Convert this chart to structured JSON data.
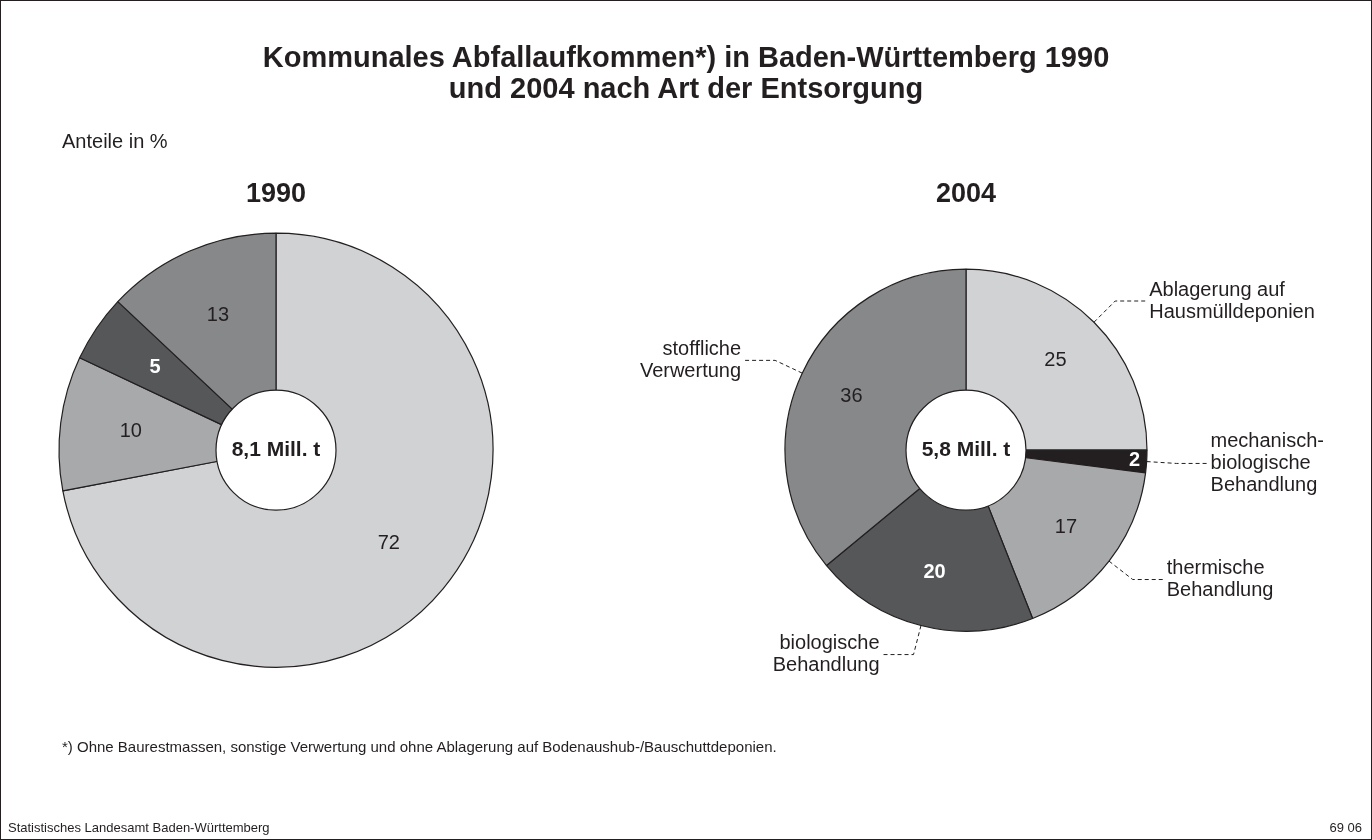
{
  "chart_data": [
    {
      "type": "donut",
      "title": "1990",
      "categories": [
        null,
        null,
        null,
        null
      ],
      "values": [
        72,
        10,
        5,
        13
      ],
      "colors": [
        "#d1d2d4",
        "#a8a9ab",
        "#555759",
        "#87888a"
      ],
      "data_labels": true,
      "legend": false,
      "annotations": [
        "Kommunales Abfallaufkommen*) in Baden-Württemberg 1990 und 2004 nach Art der Entsorgung",
        "Anteile in %",
        "8,1 Mill. t",
        "*) Ohne Baurestmassen, sonstige Verwertung und ohne Ablagerung auf Bodenaushub-/Bauschuttdeponien.",
        "Statistisches Landesamt Baden-Württemberg",
        "69 06"
      ]
    },
    {
      "type": "donut",
      "title": "2004",
      "categories": [
        "Ablagerung auf Hausmülldeponien",
        "mechanisch-biologische Behandlung",
        "thermische Behandlung",
        "biologische Behandlung",
        "stoffliche Verwertung"
      ],
      "values": [
        25,
        2,
        17,
        20,
        36
      ],
      "colors": [
        "#d1d2d4",
        "#231f20",
        "#a8a9ab",
        "#555759",
        "#87888a"
      ],
      "data_labels": true,
      "legend": false,
      "annotations": [
        "5,8 Mill. t"
      ]
    }
  ]
}
